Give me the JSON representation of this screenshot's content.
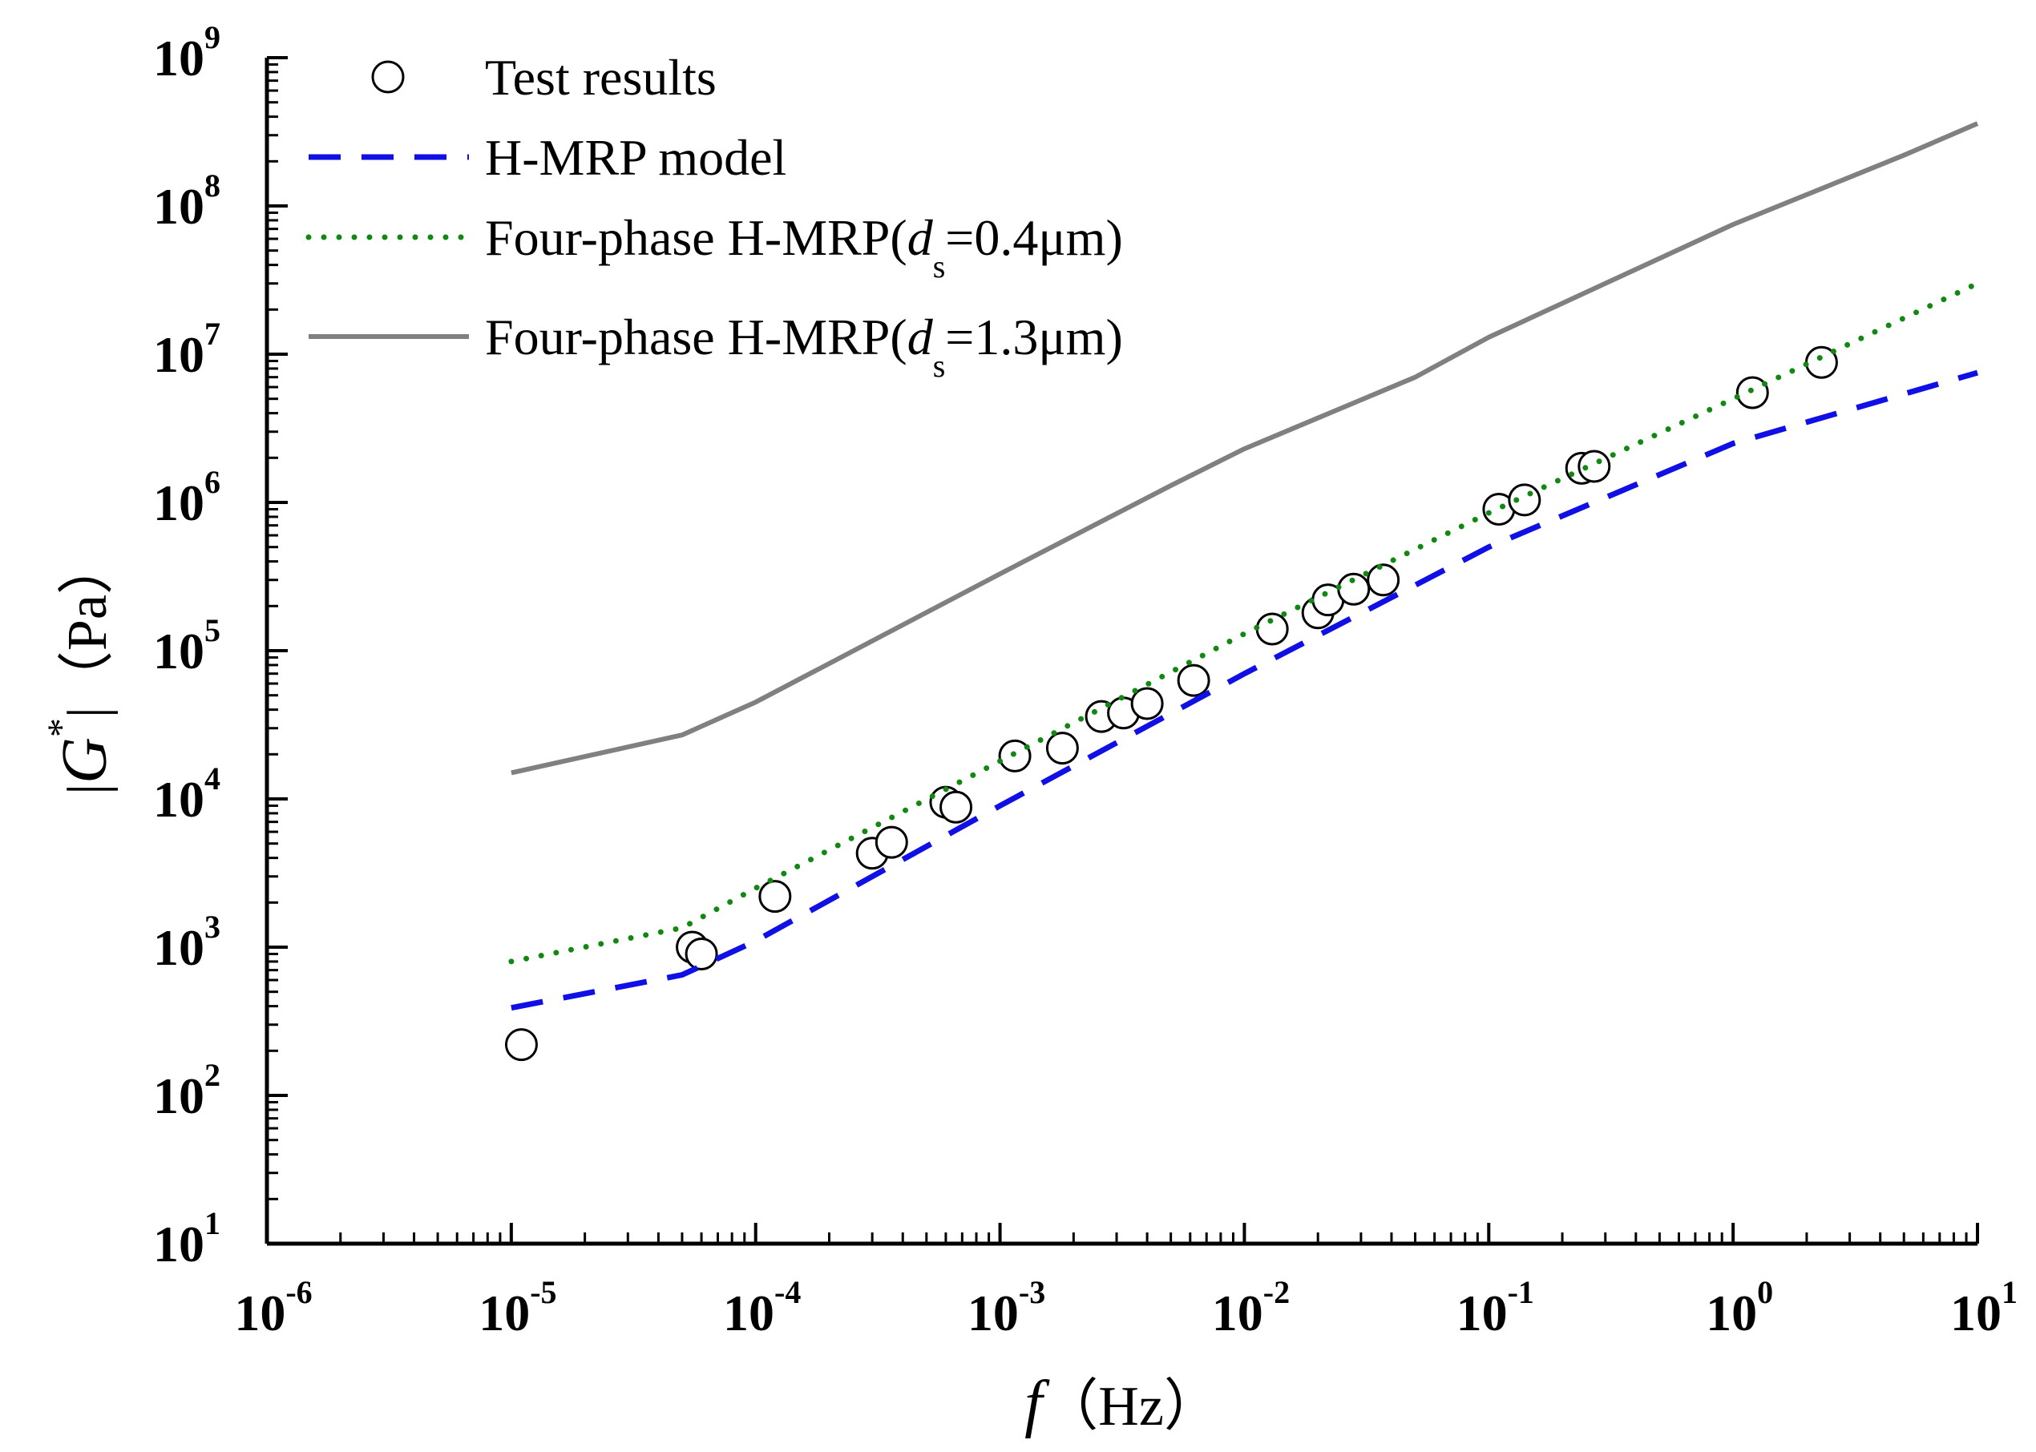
{
  "chart_data": {
    "type": "scatter",
    "xscale": "log",
    "yscale": "log",
    "xlim": [
      1e-06,
      10
    ],
    "ylim": [
      10,
      1000000000
    ],
    "xticks": [
      {
        "base": "10",
        "exp": "-6"
      },
      {
        "base": "10",
        "exp": "-5"
      },
      {
        "base": "10",
        "exp": "-4"
      },
      {
        "base": "10",
        "exp": "-3"
      },
      {
        "base": "10",
        "exp": "-2"
      },
      {
        "base": "10",
        "exp": "-1"
      },
      {
        "base": "10",
        "exp": "0"
      },
      {
        "base": "10",
        "exp": "1"
      }
    ],
    "yticks": [
      {
        "base": "10",
        "exp": "1"
      },
      {
        "base": "10",
        "exp": "2"
      },
      {
        "base": "10",
        "exp": "3"
      },
      {
        "base": "10",
        "exp": "4"
      },
      {
        "base": "10",
        "exp": "5"
      },
      {
        "base": "10",
        "exp": "6"
      },
      {
        "base": "10",
        "exp": "7"
      },
      {
        "base": "10",
        "exp": "8"
      },
      {
        "base": "10",
        "exp": "9"
      }
    ],
    "xlabel": {
      "var": "f",
      "unit": "（Hz）"
    },
    "ylabel": {
      "pre": "|",
      "var": "G",
      "sup": "*",
      "post": "|（Pa）"
    },
    "legend_position": "top-left",
    "series": [
      {
        "name": "Test results",
        "label": {
          "text": "Test results"
        },
        "kind": "marker",
        "color": "#000000",
        "x": [
          1.1e-05,
          5.5e-05,
          6e-05,
          0.00012,
          0.0003,
          0.00036,
          0.0006,
          0.00066,
          0.00115,
          0.0018,
          0.0026,
          0.0032,
          0.004,
          0.0062,
          0.013,
          0.02,
          0.022,
          0.028,
          0.037,
          0.11,
          0.14,
          0.24,
          0.27,
          1.2,
          2.3
        ],
        "y": [
          220,
          1000,
          900,
          2200,
          4300,
          5100,
          9500,
          8800,
          19500,
          22000,
          36000,
          38000,
          44000,
          63000,
          140000,
          180000,
          220000,
          260000,
          300000,
          900000,
          1040000,
          1700000,
          1750000,
          5500000,
          8800000
        ]
      },
      {
        "name": "H-MRP model",
        "label": {
          "text": "H-MRP model"
        },
        "kind": "line",
        "dash": "dashed",
        "color": "#1010e6",
        "x": [
          1e-05,
          5e-05,
          0.0001,
          0.001,
          0.01,
          0.1,
          1,
          10
        ],
        "y": [
          390,
          650,
          1100,
          9000,
          70000,
          500000,
          2500000,
          7500000
        ]
      },
      {
        "name": "Four-phase H-MRP(ds=0.4μm)",
        "label": {
          "pre": "Four-phase H-MRP(",
          "var": "d",
          "sub": "s",
          "post": "=0.4μm)"
        },
        "kind": "line",
        "dash": "dotted",
        "color": "#118811",
        "x": [
          1e-05,
          5e-05,
          0.0001,
          0.001,
          0.01,
          0.1,
          1,
          10
        ],
        "y": [
          800,
          1350,
          2500,
          18000,
          130000,
          850000,
          5000000,
          30000000
        ]
      },
      {
        "name": "Four-phase H-MRP(ds=1.3μm)",
        "label": {
          "pre": "Four-phase H-MRP(",
          "var": "d",
          "sub": "s",
          "post": "=1.3μm)"
        },
        "kind": "line",
        "dash": "solid",
        "color": "#808080",
        "x": [
          1e-05,
          5e-05,
          0.0001,
          0.001,
          0.005,
          0.01,
          0.05,
          0.1,
          1,
          5,
          10
        ],
        "y": [
          15000,
          27000,
          45000,
          330000,
          1300000,
          2300000,
          7000000,
          13000000,
          75000000,
          220000000,
          360000000
        ]
      }
    ]
  }
}
